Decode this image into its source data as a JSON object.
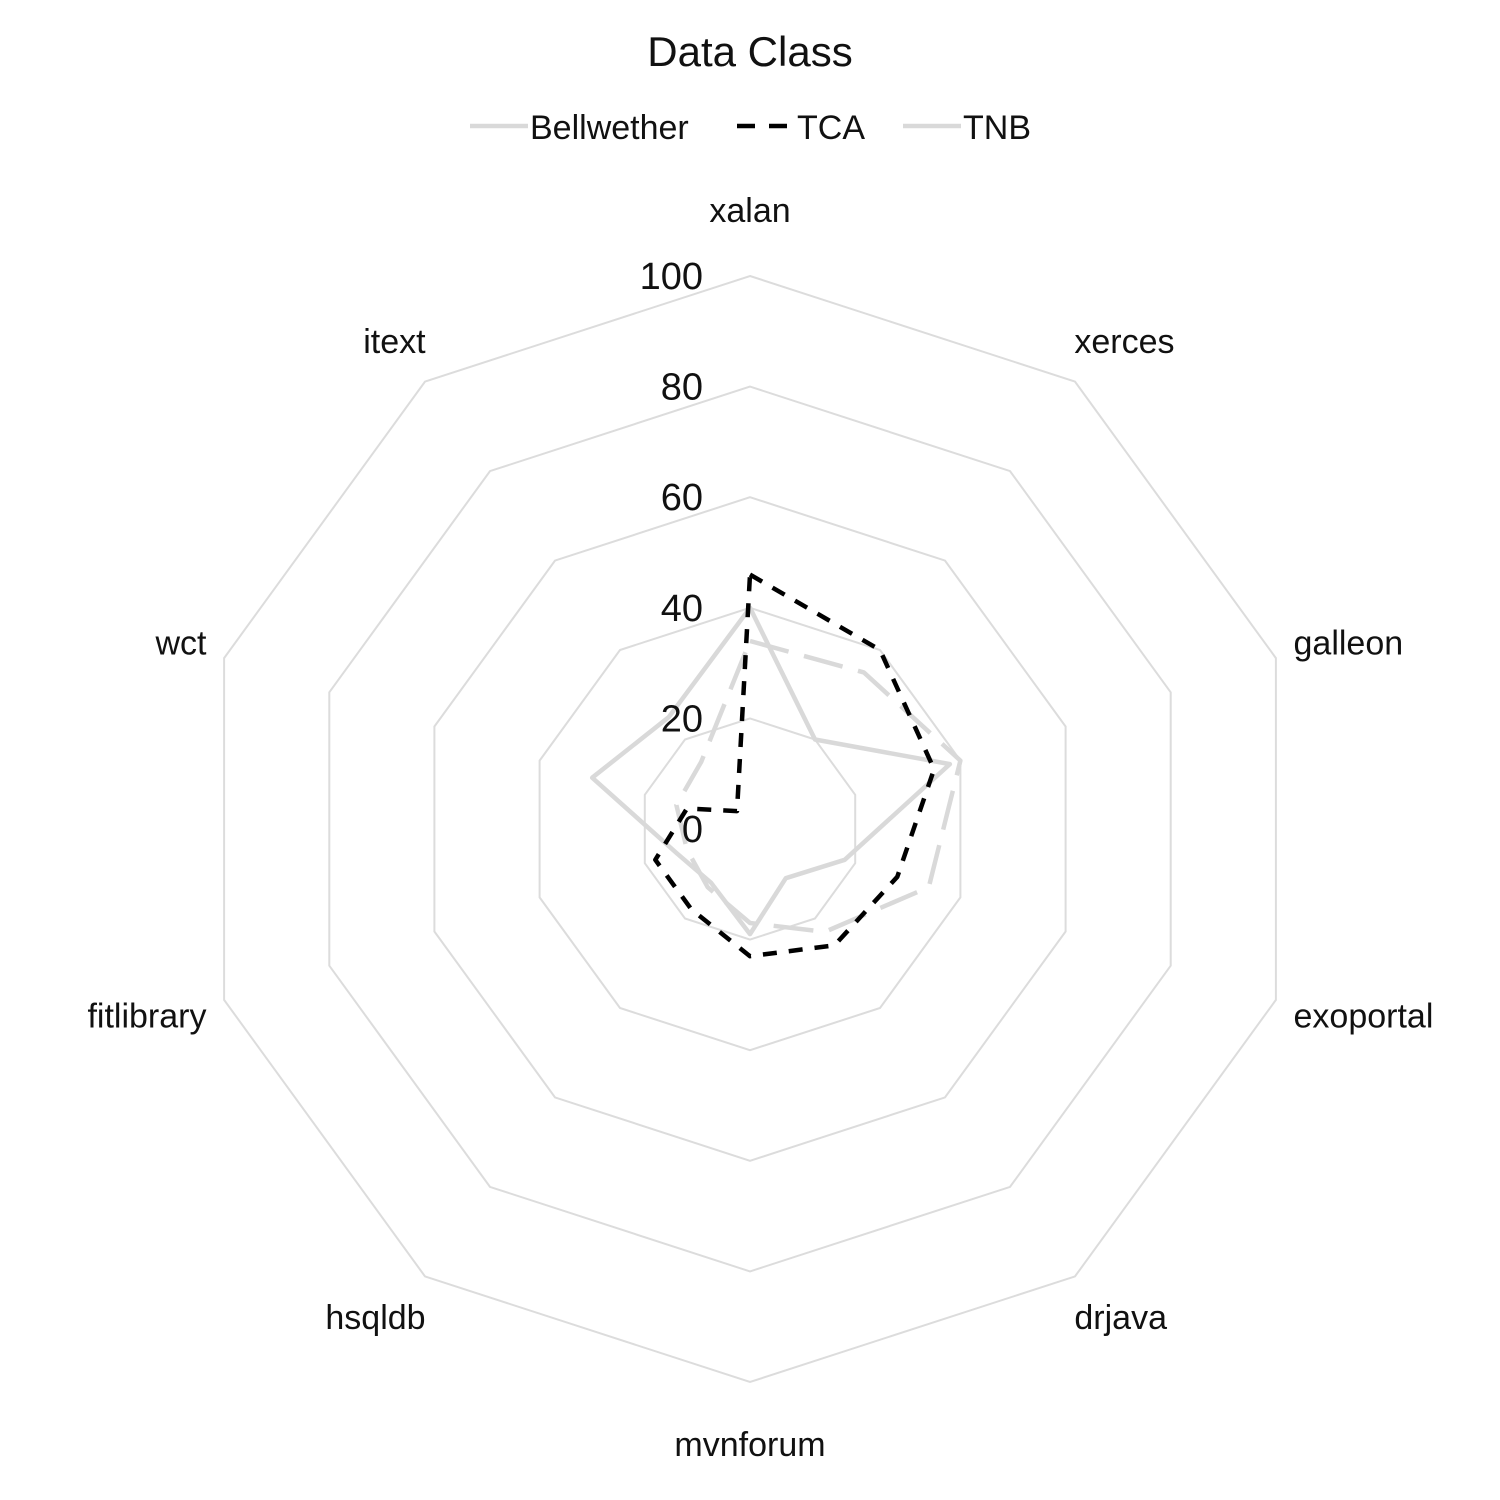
{
  "chart_data": {
    "type": "radar",
    "title": "Data Class",
    "axes": [
      "xalan",
      "xerces",
      "galleon",
      "exoportal",
      "drjava",
      "mvnforum",
      "hsqldb",
      "fitlibrary",
      "wct",
      "itext"
    ],
    "radial_ticks": [
      0,
      20,
      40,
      60,
      80,
      100
    ],
    "rlim": [
      0,
      100
    ],
    "grid": true,
    "legend_position": "top-center",
    "series": [
      {
        "name": "Bellwether",
        "style": "solid",
        "color": "#d9d9d9",
        "values": [
          40,
          20,
          38,
          18,
          11,
          19,
          12,
          14,
          30,
          25
        ]
      },
      {
        "name": "TCA",
        "style": "dashed",
        "color": "#000000",
        "values": [
          46,
          40,
          35,
          28,
          26,
          23,
          18,
          18,
          12,
          4
        ]
      },
      {
        "name": "TNB",
        "style": "longdash",
        "color": "#d9d9d9",
        "values": [
          34,
          35,
          40,
          34,
          23,
          17,
          13,
          12,
          14,
          15
        ]
      }
    ]
  }
}
